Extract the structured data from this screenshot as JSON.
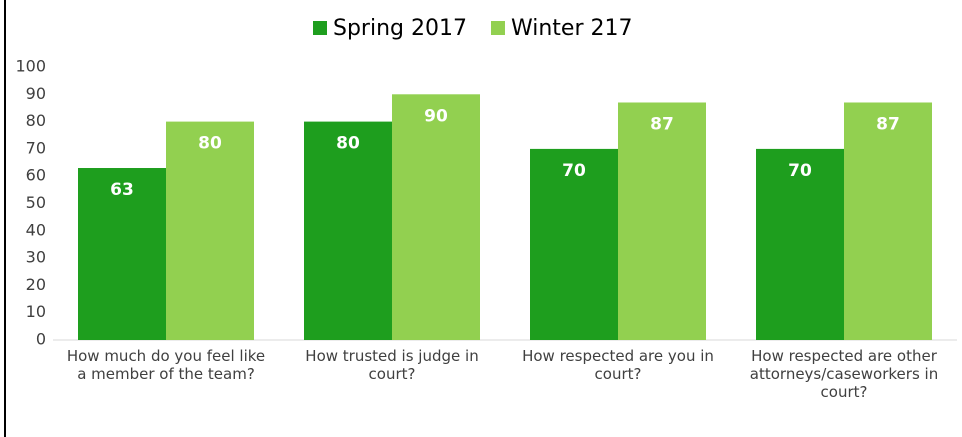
{
  "chart_data": {
    "type": "bar",
    "categories": [
      "How much do you feel like a member of the team?",
      "How trusted is judge in court?",
      "How respected are you in court?",
      "How respected are other attorneys/caseworkers in court?"
    ],
    "series": [
      {
        "name": "Spring 2017",
        "color": "#1e9e1e",
        "values": [
          63,
          80,
          70,
          70
        ]
      },
      {
        "name": "Winter 217",
        "color": "#92d050",
        "values": [
          80,
          90,
          87,
          87
        ]
      }
    ],
    "ylim": [
      0,
      100
    ],
    "yticks": [
      0,
      10,
      20,
      30,
      40,
      50,
      60,
      70,
      80,
      90,
      100
    ],
    "grid": false,
    "legend": "top"
  }
}
